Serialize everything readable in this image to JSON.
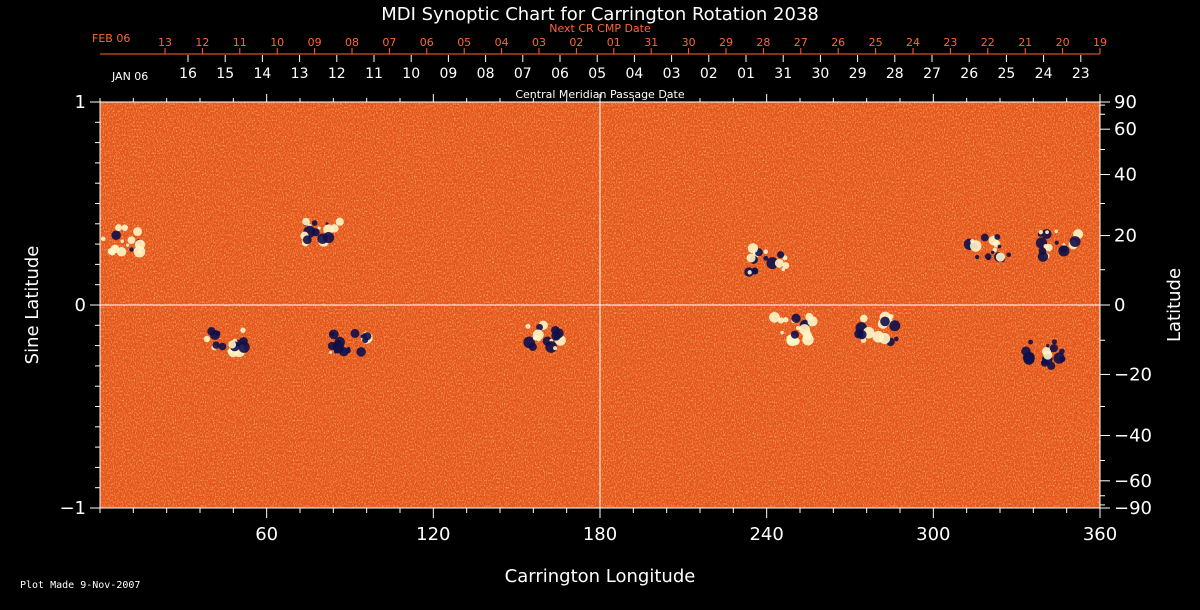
{
  "chart_data": {
    "type": "heatmap",
    "title": "MDI Synoptic Chart for Carrington Rotation 2038",
    "xlabel": "Carrington Longitude",
    "ylabel_left": "Sine Latitude",
    "ylabel_right": "Latitude",
    "xlim": [
      0,
      360
    ],
    "ylim": [
      -1,
      1
    ],
    "x_ticks": [
      60,
      120,
      180,
      240,
      300,
      360
    ],
    "y_ticks_left": [
      1,
      0,
      -1
    ],
    "y_tick_labels_left": [
      "1",
      "0",
      "−1"
    ],
    "lat_ticks_right": [
      90,
      60,
      40,
      20,
      0,
      -20,
      -40,
      -60,
      -90
    ],
    "lat_tick_labels_right": [
      "90",
      "60",
      "40",
      "20",
      "0",
      "−20",
      "−40",
      "−60",
      "−90"
    ],
    "grid": {
      "vertical_line_at": 180,
      "horizontal_line_at": 0
    },
    "top_axis_next": {
      "label": "Next CR CMP Date",
      "month_label": "FEB 06",
      "days": [
        "13",
        "12",
        "11",
        "10",
        "09",
        "08",
        "07",
        "06",
        "05",
        "04",
        "03",
        "02",
        "01",
        "31",
        "30",
        "29",
        "28",
        "27",
        "26",
        "25",
        "24",
        "23",
        "22",
        "21",
        "20",
        "19"
      ]
    },
    "top_axis_cmp": {
      "label": "Central Meridian Passage Date",
      "month_label": "JAN 06",
      "days": [
        "16",
        "15",
        "14",
        "13",
        "12",
        "11",
        "10",
        "09",
        "08",
        "07",
        "06",
        "05",
        "04",
        "03",
        "02",
        "01",
        "31",
        "30",
        "29",
        "28",
        "27",
        "26",
        "25",
        "24",
        "23"
      ]
    },
    "active_regions": [
      {
        "lon": 8,
        "sinlat": 0.32,
        "polarity": "positive"
      },
      {
        "lon": 45,
        "sinlat": -0.18,
        "polarity": "mixed"
      },
      {
        "lon": 80,
        "sinlat": 0.35,
        "polarity": "mixed"
      },
      {
        "lon": 90,
        "sinlat": -0.2,
        "polarity": "negative"
      },
      {
        "lon": 160,
        "sinlat": -0.16,
        "polarity": "mixed"
      },
      {
        "lon": 240,
        "sinlat": 0.22,
        "polarity": "mixed"
      },
      {
        "lon": 250,
        "sinlat": -0.12,
        "polarity": "positive"
      },
      {
        "lon": 280,
        "sinlat": -0.12,
        "polarity": "mixed"
      },
      {
        "lon": 320,
        "sinlat": 0.28,
        "polarity": "negative"
      },
      {
        "lon": 345,
        "sinlat": 0.3,
        "polarity": "mixed"
      },
      {
        "lon": 340,
        "sinlat": -0.24,
        "polarity": "negative"
      }
    ]
  },
  "footer": "Plot Made  9-Nov-2007",
  "colors": {
    "background": "#000000",
    "field_base": "#e8541a",
    "positive": "#fff6c8",
    "negative": "#10104a",
    "next_axis": "#ff6633"
  }
}
